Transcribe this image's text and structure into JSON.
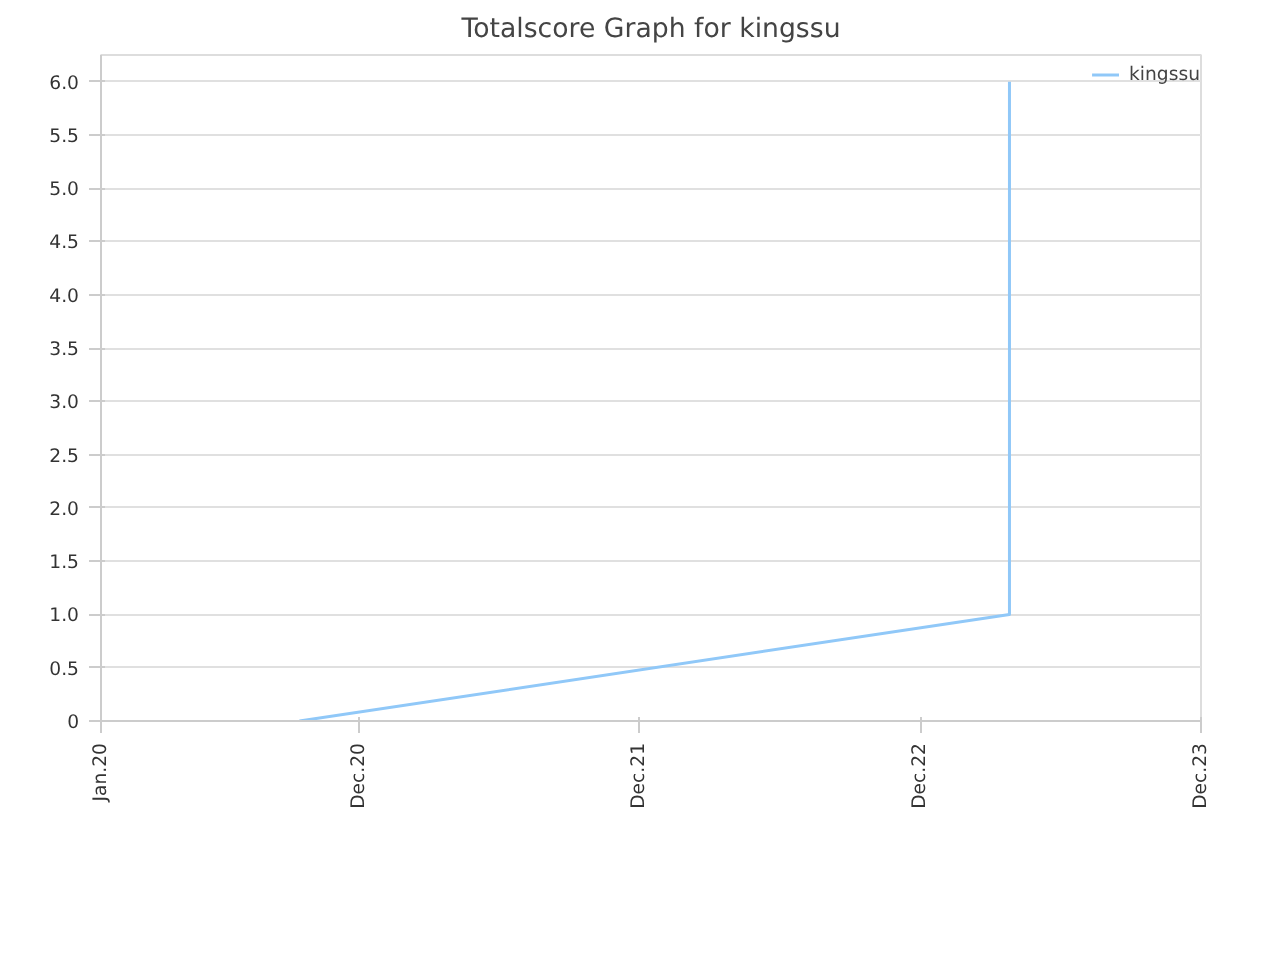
{
  "chart_data": {
    "type": "line",
    "title": "Totalscore Graph for kingssu",
    "series": [
      {
        "name": "kingssu",
        "color": "#90c8f8",
        "x": [
          "2020-09-15",
          "2023-03-27",
          "2023-03-27"
        ],
        "values": [
          0,
          1,
          6
        ]
      }
    ],
    "xlim": [
      "2020-01-01",
      "2023-12-01"
    ],
    "xticks": [
      {
        "value": "2020-01-01",
        "label": "Jan.20"
      },
      {
        "value": "2020-12-01",
        "label": "Dec.20"
      },
      {
        "value": "2021-12-01",
        "label": "Dec.21"
      },
      {
        "value": "2022-12-01",
        "label": "Dec.22"
      },
      {
        "value": "2023-12-01",
        "label": "Dec.23"
      }
    ],
    "ylim": [
      0,
      6.25
    ],
    "yticks": [
      0,
      {
        "value": 0.5,
        "label": "0.5"
      },
      {
        "value": 1,
        "label": "1.0"
      },
      {
        "value": 1.5,
        "label": "1.5"
      },
      {
        "value": 2,
        "label": "2.0"
      },
      {
        "value": 2.5,
        "label": "2.5"
      },
      {
        "value": 3,
        "label": "3.0"
      },
      {
        "value": 3.5,
        "label": "3.5"
      },
      {
        "value": 4,
        "label": "4.0"
      },
      {
        "value": 4.5,
        "label": "4.5"
      },
      {
        "value": 5,
        "label": "5.0"
      },
      {
        "value": 5.5,
        "label": "5.5"
      },
      {
        "value": 6,
        "label": "6.0"
      }
    ],
    "grid": "y",
    "legend": "top right",
    "marker": "none",
    "line_style": "solid"
  }
}
